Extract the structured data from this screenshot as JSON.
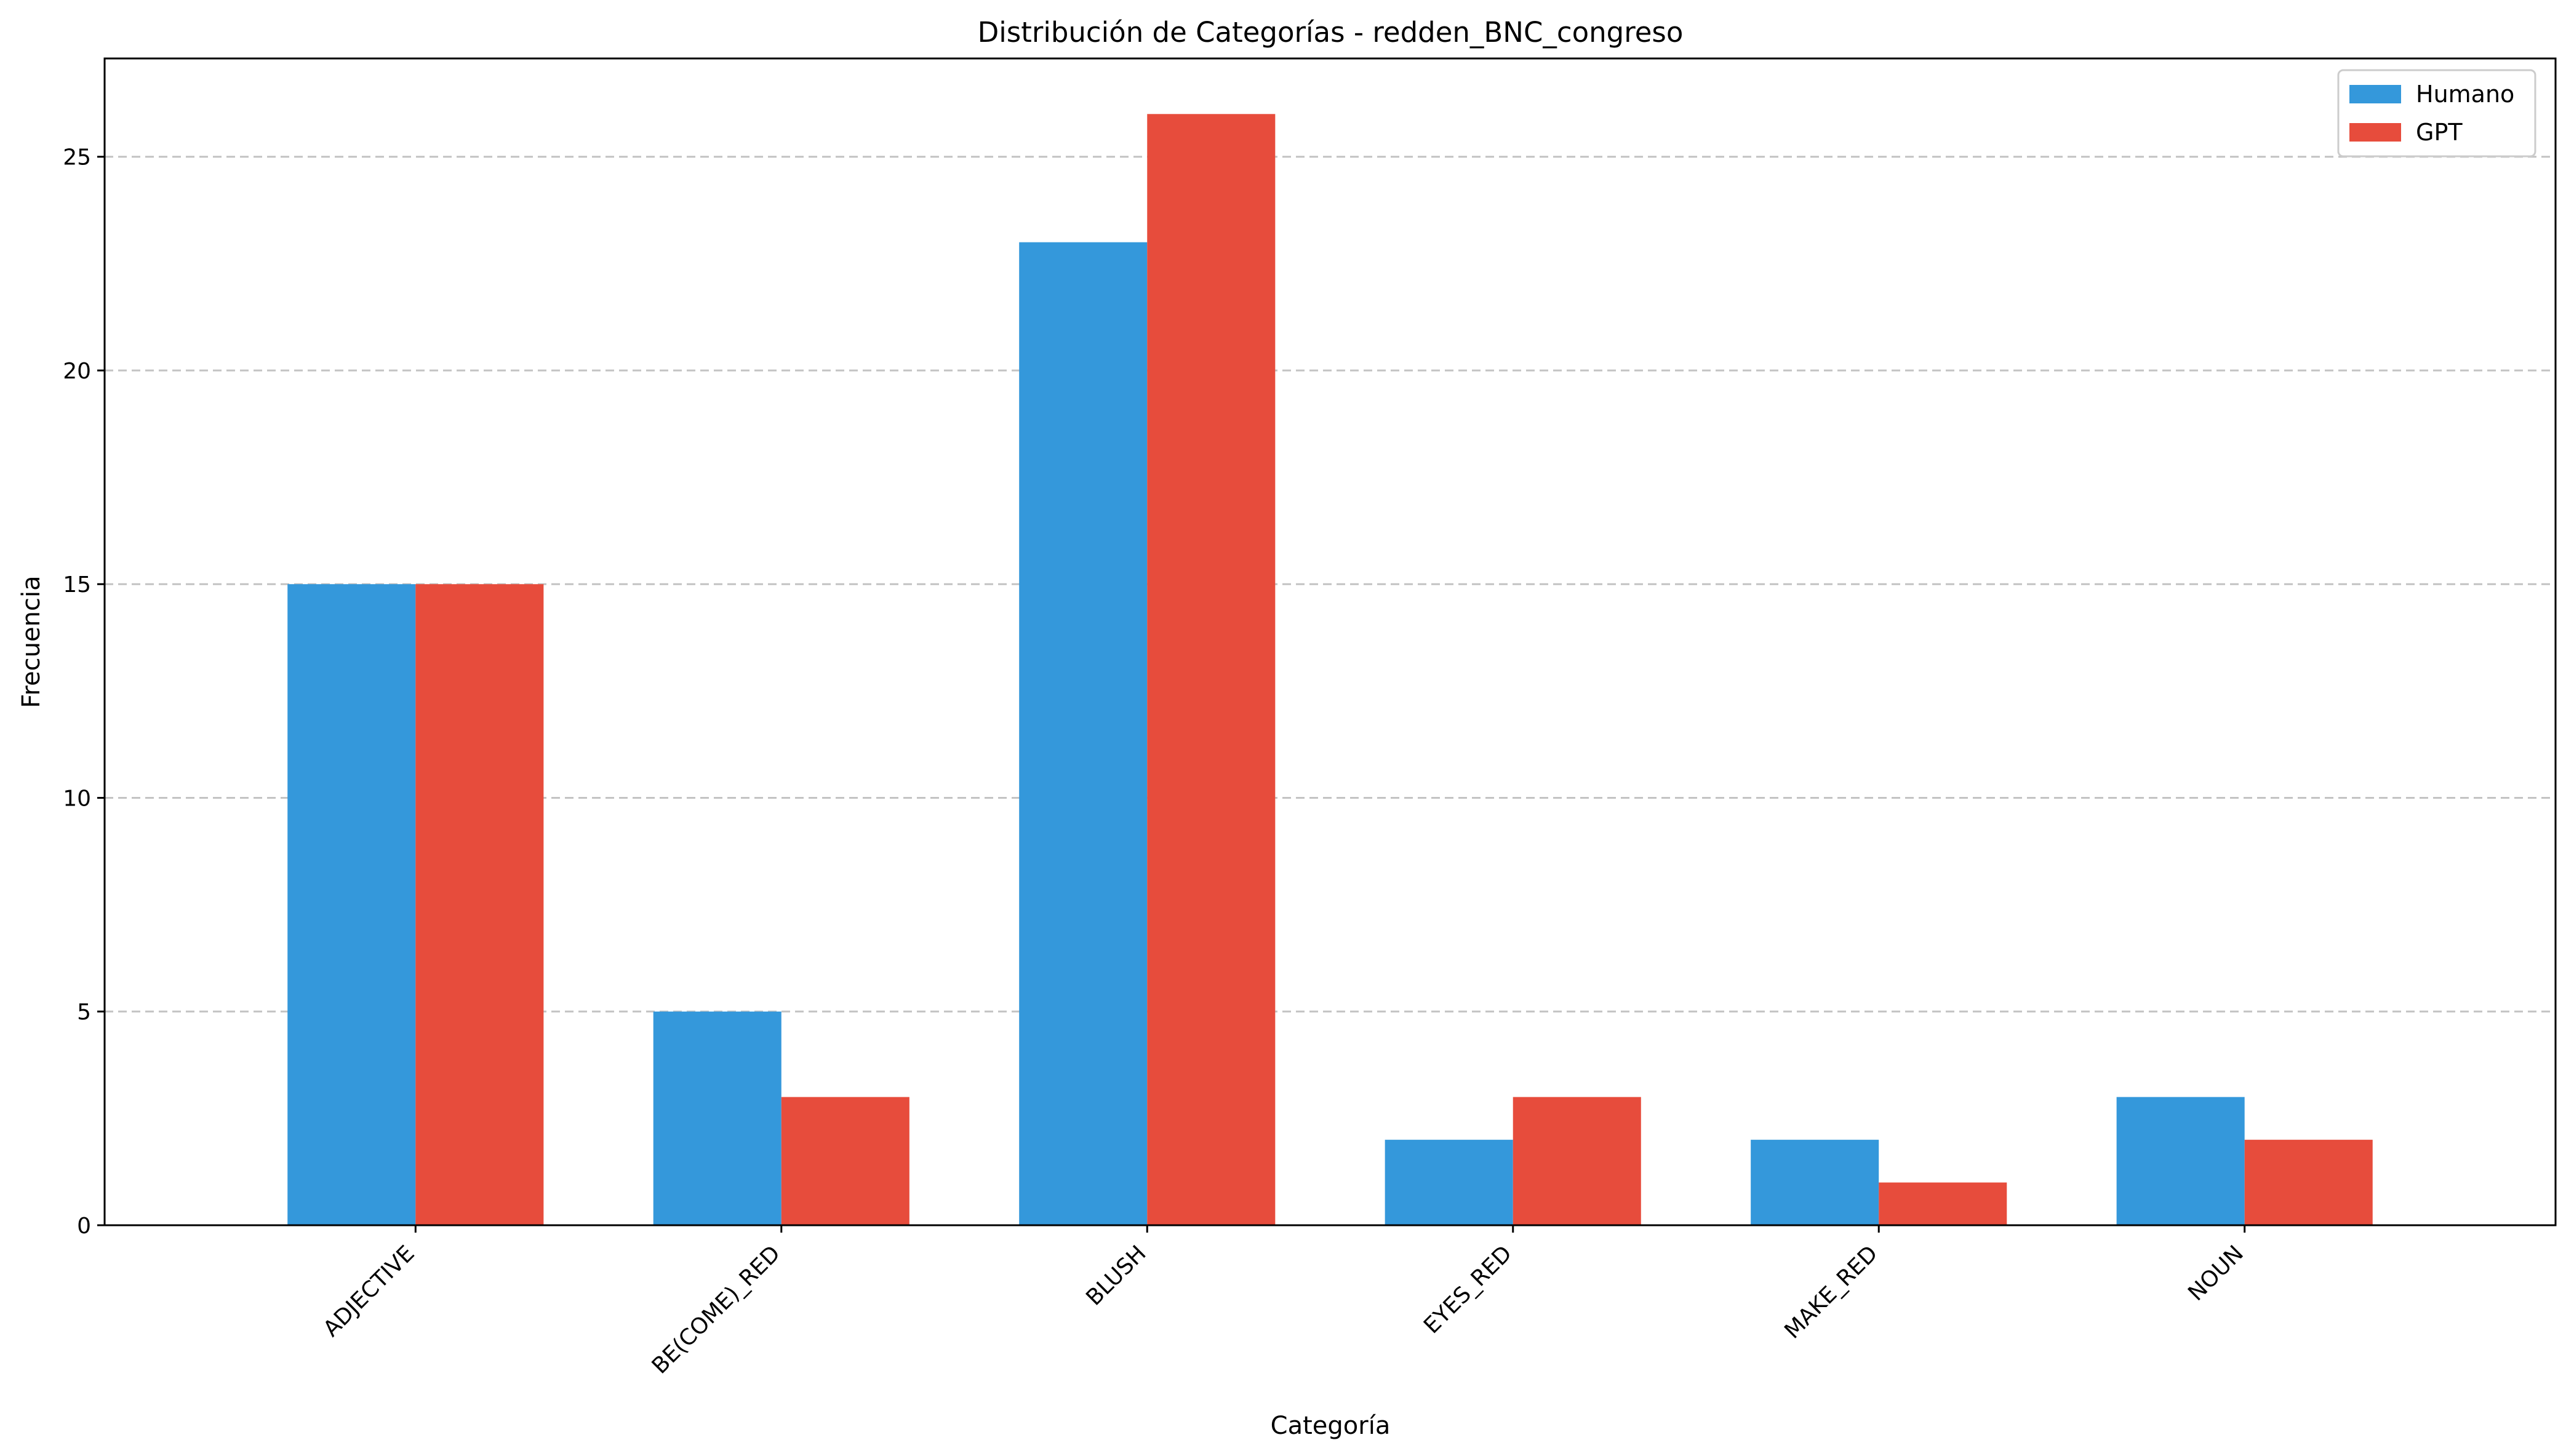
{
  "chart_data": {
    "type": "bar",
    "title": "Distribución de Categorías - redden_BNC_congreso",
    "xlabel": "Categoría",
    "ylabel": "Frecuencia",
    "categories": [
      "ADJECTIVE",
      "BE(COME)_RED",
      "BLUSH",
      "EYES_RED",
      "MAKE_RED",
      "NOUN"
    ],
    "series": [
      {
        "name": "Humano",
        "color": "#3498db",
        "values": [
          15,
          5,
          23,
          2,
          2,
          3
        ]
      },
      {
        "name": "GPT",
        "color": "#e74c3c",
        "values": [
          15,
          3,
          26,
          3,
          1,
          2
        ]
      }
    ],
    "ylim": [
      0,
      27.3
    ],
    "yticks": [
      0,
      5,
      10,
      15,
      20,
      25
    ],
    "grid": "horizontal dashed",
    "legend": "top-right"
  }
}
